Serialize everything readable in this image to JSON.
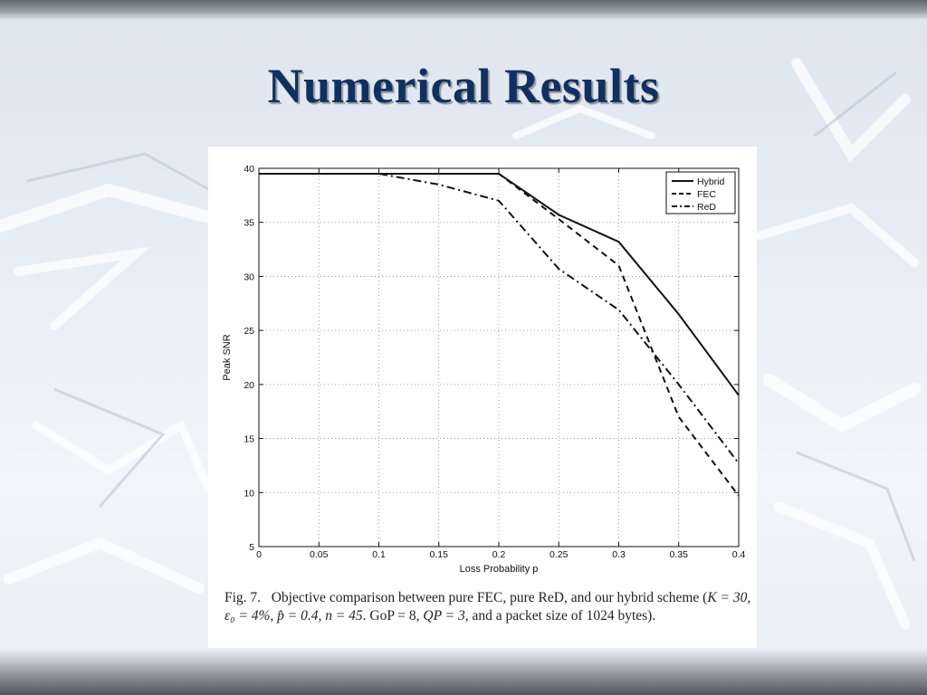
{
  "slide": {
    "title": "Numerical Results"
  },
  "caption": {
    "label": "Fig. 7.",
    "text_1": "Objective comparison between pure FEC, pure ReD, and our hybrid scheme (",
    "math": "K = 30, ε₀ = 4%, p̂ = 0.4, n = 45",
    "text_2": ". GoP = 8, ",
    "math_2": "QP = 3",
    "text_3": ", and a packet size of 1024 bytes)."
  },
  "chart_data": {
    "type": "line",
    "title": "",
    "xlabel": "Loss Probability p",
    "ylabel": "Peak SNR",
    "xlim": [
      0,
      0.4
    ],
    "ylim": [
      5,
      40
    ],
    "xticks": [
      0,
      0.05,
      0.1,
      0.15,
      0.2,
      0.25,
      0.3,
      0.35,
      0.4
    ],
    "xtick_labels": [
      "0",
      "0.05",
      "0.1",
      "0.15",
      "0.2",
      "0.25",
      "0.3",
      "0.35",
      "0.4"
    ],
    "yticks": [
      5,
      10,
      15,
      20,
      25,
      30,
      35,
      40
    ],
    "ytick_labels": [
      "5",
      "10",
      "15",
      "20",
      "25",
      "30",
      "35",
      "40"
    ],
    "grid": true,
    "legend_position": "top-right",
    "series": [
      {
        "name": "Hybrid",
        "style": "solid",
        "x": [
          0,
          0.1,
          0.2,
          0.25,
          0.3,
          0.35,
          0.4
        ],
        "y": [
          39.5,
          39.5,
          39.5,
          35.7,
          33.2,
          26.5,
          19.0
        ]
      },
      {
        "name": "FEC",
        "style": "dashed",
        "x": [
          0,
          0.1,
          0.2,
          0.25,
          0.3,
          0.35,
          0.4
        ],
        "y": [
          39.5,
          39.5,
          39.5,
          35.3,
          31.0,
          17.0,
          9.7
        ]
      },
      {
        "name": "ReD",
        "style": "dashdot",
        "x": [
          0,
          0.1,
          0.15,
          0.2,
          0.25,
          0.3,
          0.35,
          0.4
        ],
        "y": [
          39.5,
          39.5,
          38.5,
          37.0,
          30.7,
          26.9,
          20.0,
          12.7
        ]
      }
    ],
    "line_color": "#111111"
  }
}
